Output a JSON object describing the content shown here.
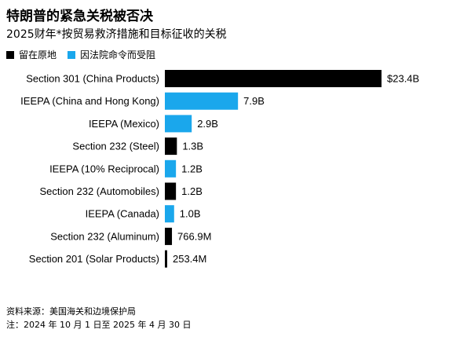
{
  "title": "特朗普的紧急关税被否决",
  "subtitle": "2025财年*按贸易救济措施和目标征收的关税",
  "legend": [
    {
      "label": "留在原地",
      "color": "#000000"
    },
    {
      "label": "因法院命令而受阻",
      "color": "#1aa7ec"
    }
  ],
  "chart_data": {
    "type": "bar",
    "orientation": "horizontal",
    "title": "特朗普的紧急关税被否决",
    "subtitle": "2025财年*按贸易救济措施和目标征收的关税",
    "categories": [
      "Section 301 (China Products)",
      "IEEPA (China and Hong Kong)",
      "IEEPA (Mexico)",
      "Section 232 (Steel)",
      "IEEPA (10% Reciprocal)",
      "Section 232 (Automobiles)",
      "IEEPA (Canada)",
      "Section 232 (Aluminum)",
      "Section 201 (Solar Products)"
    ],
    "values": [
      23.4,
      7.9,
      2.9,
      1.3,
      1.2,
      1.2,
      1.0,
      0.7669,
      0.2534
    ],
    "value_labels": [
      "$23.4B",
      "7.9B",
      "2.9B",
      "1.3B",
      "1.2B",
      "1.2B",
      "1.0B",
      "766.9M",
      "253.4M"
    ],
    "status": [
      "留在原地",
      "因法院命令而受阻",
      "因法院命令而受阻",
      "留在原地",
      "因法院命令而受阻",
      "留在原地",
      "因法院命令而受阻",
      "留在原地",
      "留在原地"
    ],
    "unit": "billion USD",
    "xlim": [
      0,
      23.4
    ],
    "grid": false,
    "legend_position": "top-left"
  },
  "footer": {
    "source": "资料来源：美国海关和边境保护局",
    "note": "注：2024 年 10 月 1 日至 2025 年 4 月 30 日"
  }
}
